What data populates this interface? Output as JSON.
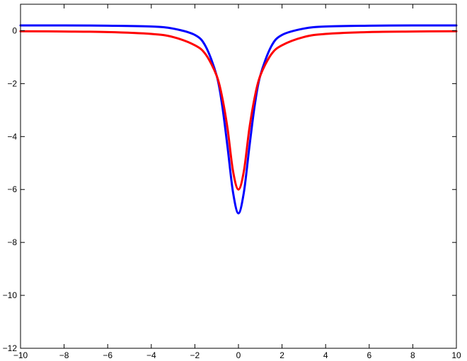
{
  "chart_data": {
    "type": "line",
    "title": "",
    "xlabel": "",
    "ylabel": "",
    "xlim": [
      -10,
      10
    ],
    "ylim": [
      -12,
      1
    ],
    "grid": false,
    "x_ticks": [
      -10,
      -8,
      -6,
      -4,
      -2,
      0,
      2,
      4,
      6,
      8,
      10
    ],
    "y_ticks": [
      0,
      -2,
      -4,
      -6,
      -8,
      -10,
      -12
    ],
    "x_tick_labels": [
      "−10",
      "−8",
      "−6",
      "−4",
      "−2",
      "0",
      "2",
      "4",
      "6",
      "8",
      "10"
    ],
    "y_tick_labels": [
      "0",
      "−2",
      "−4",
      "−6",
      "−8",
      "−10",
      "−12"
    ],
    "series": [
      {
        "color": "#0000ff",
        "x": [
          -10,
          -8,
          -6,
          -4,
          -3,
          -2,
          -1.5,
          -1,
          -0.75,
          -0.5,
          -0.25,
          0,
          0.25,
          0.5,
          0.75,
          1,
          1.5,
          2,
          3,
          4,
          6,
          8,
          10
        ],
        "y": [
          0.2,
          0.2,
          0.19,
          0.16,
          0.08,
          -0.16,
          -0.6,
          -1.7,
          -2.8,
          -4.4,
          -6.1,
          -6.9,
          -6.1,
          -4.4,
          -2.8,
          -1.7,
          -0.6,
          -0.16,
          0.08,
          0.16,
          0.19,
          0.2,
          0.2
        ]
      },
      {
        "color": "#ff0000",
        "x": [
          -10,
          -8,
          -6,
          -4,
          -3,
          -2,
          -1.5,
          -1,
          -0.75,
          -0.5,
          -0.25,
          0,
          0.25,
          0.5,
          0.75,
          1,
          1.5,
          2,
          3,
          4,
          6,
          8,
          10
        ],
        "y": [
          -0.02,
          -0.03,
          -0.05,
          -0.12,
          -0.24,
          -0.55,
          -0.9,
          -1.7,
          -2.5,
          -3.7,
          -5.3,
          -6.0,
          -5.3,
          -3.7,
          -2.5,
          -1.7,
          -0.9,
          -0.55,
          -0.24,
          -0.12,
          -0.05,
          -0.03,
          -0.02
        ]
      }
    ]
  }
}
